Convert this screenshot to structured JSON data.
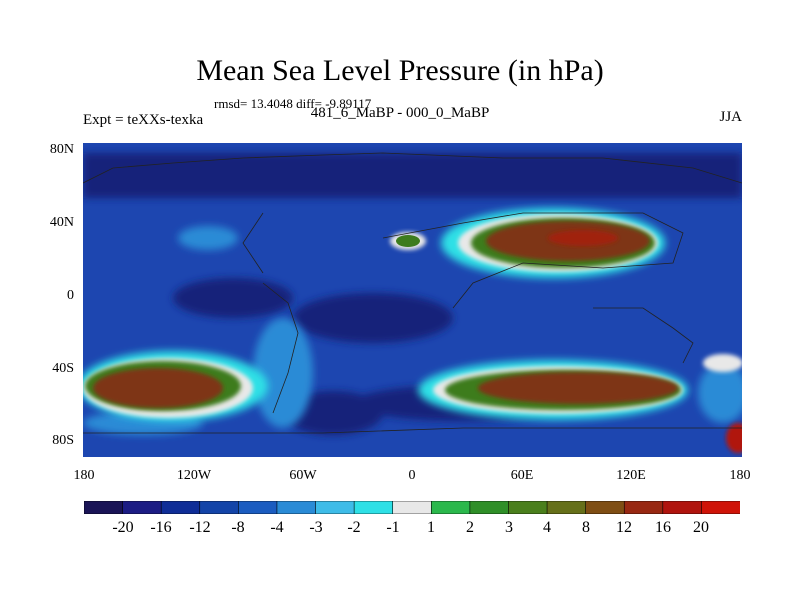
{
  "title": "Mean Sea Level Pressure (in hPa)",
  "stats": "rmsd= 13.4048 diff= -9.89117",
  "left_label": "Expt = teXXs-texka",
  "subtitle": "481_6_MaBP - 000_0_MaBP",
  "season": "JJA",
  "lat_ticks": [
    "80N",
    "40N",
    "0",
    "40S",
    "80S"
  ],
  "lon_ticks": [
    "180",
    "120W",
    "60W",
    "0",
    "60E",
    "120E",
    "180"
  ],
  "colorbar": {
    "colors": [
      "#1a1456",
      "#1c1c84",
      "#0f2d97",
      "#1344a8",
      "#1b5cc0",
      "#2a8bd6",
      "#3ebce8",
      "#2ee0e6",
      "#e8e8e8",
      "#2bb84c",
      "#2f8f28",
      "#4a7f1c",
      "#66701a",
      "#7f4e14",
      "#982812",
      "#b0140e",
      "#cf1308"
    ],
    "labels": [
      "-20",
      "-16",
      "-12",
      "-8",
      "-4",
      "-3",
      "-2",
      "-1",
      "1",
      "2",
      "3",
      "4",
      "8",
      "12",
      "16",
      "20"
    ]
  },
  "map": {
    "ocean_color": "#1d46b0",
    "deep_blue": "#15237a",
    "high_land_color": "#7e3612",
    "mid_land_color": "#3d7c1e",
    "boundary_color": "#ececec"
  }
}
